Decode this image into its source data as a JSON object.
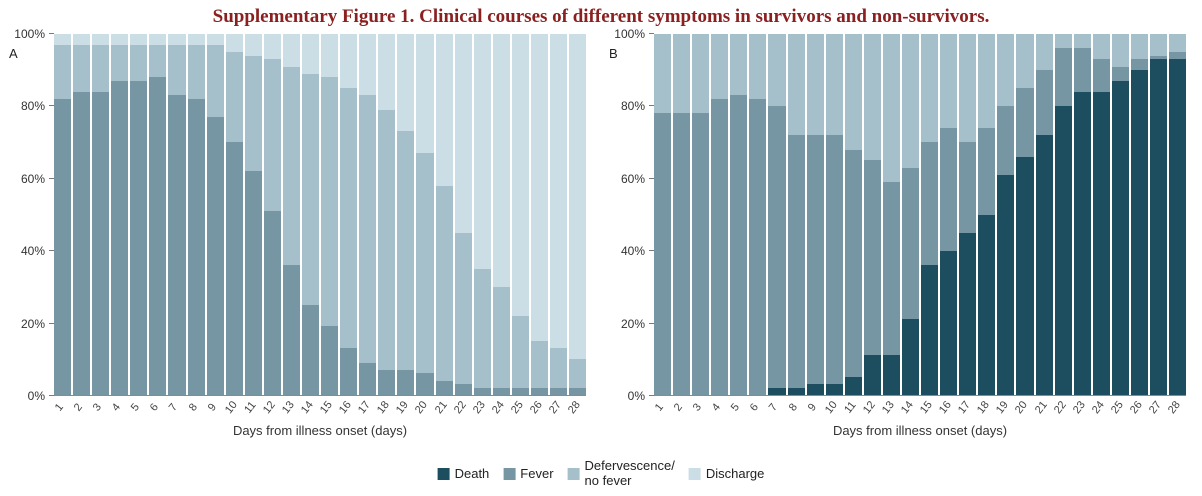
{
  "title": "Supplementary Figure 1. Clinical courses of different symptoms in survivors and non-survivors.",
  "x_axis_label": "Days from illness onset (days)",
  "y_ticks": [
    "0%",
    "20%",
    "40%",
    "60%",
    "80%",
    "100%"
  ],
  "colors": {
    "death": "#1d4e60",
    "fever": "#7696a4",
    "defervescence": "#a6c0cb",
    "discharge": "#cbdde5",
    "title": "#8b2020"
  },
  "legend": [
    {
      "label": "Death",
      "color": "#1d4e60"
    },
    {
      "label": "Fever",
      "color": "#7696a4"
    },
    {
      "label": "Defervescence/\nno fever",
      "color": "#a6c0cb"
    },
    {
      "label": "Discharge",
      "color": "#cbdde5"
    }
  ],
  "chart_data": [
    {
      "type": "bar",
      "stacked": true,
      "panel": "A",
      "title": "",
      "xlabel": "Days from illness onset (days)",
      "ylabel": "",
      "ylim": [
        0,
        100
      ],
      "grid": false,
      "categories": [
        1,
        2,
        3,
        4,
        5,
        6,
        7,
        8,
        9,
        10,
        11,
        12,
        13,
        14,
        15,
        16,
        17,
        18,
        19,
        20,
        21,
        22,
        23,
        24,
        25,
        26,
        27,
        28
      ],
      "series": [
        {
          "name": "Death",
          "color": "#1d4e60",
          "values": [
            0,
            0,
            0,
            0,
            0,
            0,
            0,
            0,
            0,
            0,
            0,
            0,
            0,
            0,
            0,
            0,
            0,
            0,
            0,
            0,
            0,
            0,
            0,
            0,
            0,
            0,
            0,
            0
          ]
        },
        {
          "name": "Fever",
          "color": "#7696a4",
          "values": [
            82,
            84,
            84,
            87,
            87,
            88,
            83,
            82,
            77,
            70,
            62,
            51,
            36,
            25,
            19,
            13,
            9,
            7,
            7,
            6,
            4,
            3,
            2,
            2,
            2,
            2,
            2,
            2
          ]
        },
        {
          "name": "Defervescence/no fever",
          "color": "#a6c0cb",
          "values": [
            15,
            13,
            13,
            10,
            10,
            9,
            14,
            15,
            20,
            25,
            32,
            42,
            55,
            64,
            69,
            72,
            74,
            72,
            66,
            61,
            54,
            42,
            33,
            28,
            20,
            13,
            11,
            8
          ]
        },
        {
          "name": "Discharge",
          "color": "#cbdde5",
          "values": [
            3,
            3,
            3,
            3,
            3,
            3,
            3,
            3,
            3,
            5,
            6,
            7,
            9,
            11,
            12,
            15,
            17,
            21,
            27,
            33,
            42,
            55,
            65,
            70,
            78,
            85,
            87,
            90
          ]
        }
      ]
    },
    {
      "type": "bar",
      "stacked": true,
      "panel": "B",
      "title": "",
      "xlabel": "Days from illness onset (days)",
      "ylabel": "",
      "ylim": [
        0,
        100
      ],
      "grid": false,
      "categories": [
        1,
        2,
        3,
        4,
        5,
        6,
        7,
        8,
        9,
        10,
        11,
        12,
        13,
        14,
        15,
        16,
        17,
        18,
        19,
        20,
        21,
        22,
        23,
        24,
        25,
        26,
        27,
        28
      ],
      "series": [
        {
          "name": "Death",
          "color": "#1d4e60",
          "values": [
            0,
            0,
            0,
            0,
            0,
            0,
            2,
            2,
            3,
            3,
            5,
            11,
            11,
            21,
            36,
            40,
            45,
            50,
            61,
            66,
            72,
            80,
            84,
            84,
            87,
            90,
            93,
            93
          ]
        },
        {
          "name": "Fever",
          "color": "#7696a4",
          "values": [
            78,
            78,
            78,
            82,
            83,
            82,
            78,
            70,
            69,
            69,
            63,
            54,
            48,
            42,
            34,
            34,
            25,
            24,
            19,
            19,
            18,
            16,
            12,
            9,
            4,
            3,
            1,
            2
          ]
        },
        {
          "name": "Defervescence/no fever",
          "color": "#a6c0cb",
          "values": [
            22,
            22,
            22,
            18,
            17,
            18,
            20,
            28,
            28,
            28,
            32,
            35,
            41,
            37,
            30,
            26,
            30,
            26,
            20,
            15,
            10,
            4,
            4,
            7,
            9,
            7,
            6,
            5
          ]
        },
        {
          "name": "Discharge",
          "color": "#cbdde5",
          "values": [
            0,
            0,
            0,
            0,
            0,
            0,
            0,
            0,
            0,
            0,
            0,
            0,
            0,
            0,
            0,
            0,
            0,
            0,
            0,
            0,
            0,
            0,
            0,
            0,
            0,
            0,
            0,
            0
          ]
        }
      ]
    }
  ]
}
